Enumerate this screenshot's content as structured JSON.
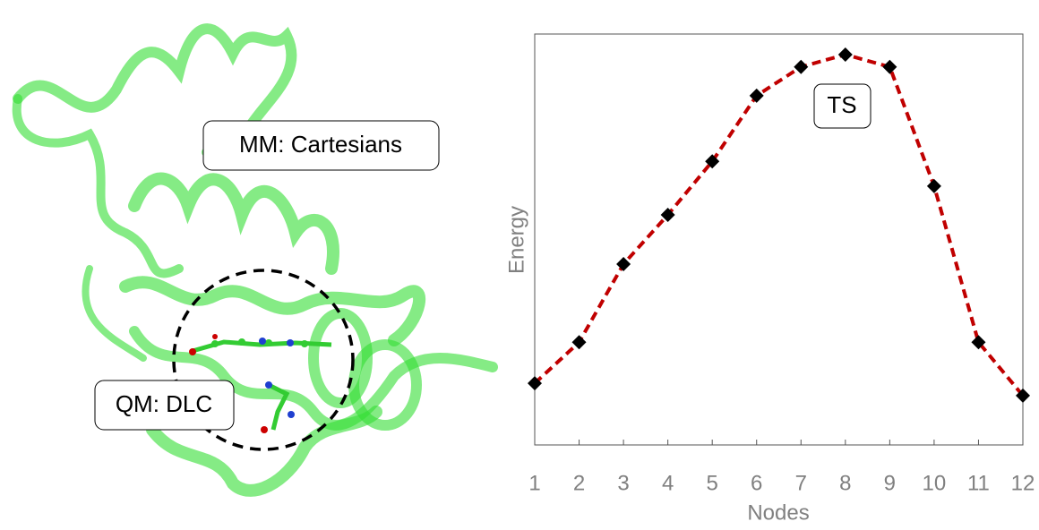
{
  "chart_data": {
    "type": "line",
    "x": [
      1,
      2,
      3,
      4,
      5,
      6,
      7,
      8,
      9,
      10,
      11,
      12
    ],
    "xlim": [
      1,
      12
    ],
    "xticks": [
      1,
      2,
      3,
      4,
      5,
      6,
      7,
      8,
      9,
      10,
      11,
      12
    ],
    "ylim": [
      0,
      100
    ],
    "series": [
      {
        "color": "#c00000",
        "values": [
          15,
          25,
          44,
          56,
          69,
          85,
          92,
          95,
          92,
          63,
          25,
          12
        ]
      }
    ],
    "xlabel": "Nodes",
    "ylabel": "Energy",
    "annotations": [
      "TS"
    ]
  },
  "illustration": {
    "labels": [
      "MM: Cartesians",
      "QM: DLC"
    ]
  }
}
